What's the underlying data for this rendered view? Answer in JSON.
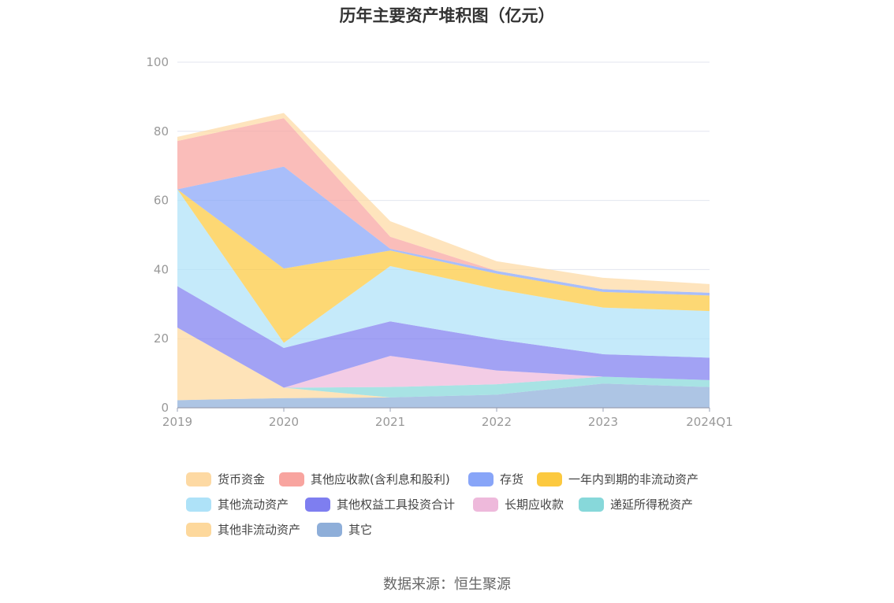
{
  "chart_data": {
    "type": "area",
    "stacked": true,
    "title": "历年主要资产堆积图（亿元）",
    "x": [
      "2019",
      "2020",
      "2021",
      "2022",
      "2023",
      "2024Q1"
    ],
    "ylim": [
      0,
      100
    ],
    "yticks": [
      0,
      20,
      40,
      60,
      80,
      100
    ],
    "grid": true,
    "legend_position": "bottom",
    "series": [
      {
        "name": "其它",
        "color": "#8eaed9",
        "values": [
          2.2,
          2.8,
          3.0,
          3.8,
          7.0,
          6.0
        ]
      },
      {
        "name": "其他非流动资产",
        "color": "#fdd89c",
        "values": [
          21.0,
          3.0,
          0.0,
          0.0,
          0.0,
          0.0
        ]
      },
      {
        "name": "递延所得税资产",
        "color": "#87d8da",
        "values": [
          0.0,
          0.0,
          3.0,
          3.0,
          2.0,
          2.0
        ]
      },
      {
        "name": "长期应收款",
        "color": "#eeb9db",
        "values": [
          0.0,
          0.0,
          9.0,
          4.0,
          0.0,
          0.0
        ]
      },
      {
        "name": "其他权益工具投资合计",
        "color": "#7e7ef0",
        "values": [
          12.0,
          11.5,
          10.0,
          9.0,
          6.5,
          6.5
        ]
      },
      {
        "name": "其他流动资产",
        "color": "#aee2f8",
        "values": [
          28.0,
          1.5,
          16.0,
          14.5,
          13.5,
          13.5
        ]
      },
      {
        "name": "一年内到期的非流动资产",
        "color": "#fcc93f",
        "values": [
          0.0,
          21.5,
          4.5,
          4.5,
          4.5,
          4.5
        ]
      },
      {
        "name": "存货",
        "color": "#88a5f8",
        "values": [
          0.0,
          29.5,
          0.5,
          0.8,
          0.8,
          0.8
        ]
      },
      {
        "name": "其他应收款(含利息和股利)",
        "color": "#f8a49f",
        "values": [
          14.0,
          14.0,
          3.5,
          0.0,
          0.0,
          0.0
        ]
      },
      {
        "name": "货币资金",
        "color": "#fdd9a3",
        "values": [
          1.2,
          1.5,
          4.5,
          2.8,
          3.3,
          2.5
        ]
      }
    ]
  },
  "legend": [
    {
      "label": "货币资金",
      "color": "#fdd9a3"
    },
    {
      "label": "其他应收款(含利息和股利)",
      "color": "#f8a49f"
    },
    {
      "label": "存货",
      "color": "#88a5f8"
    },
    {
      "label": "一年内到期的非流动资产",
      "color": "#fcc93f"
    },
    {
      "label": "其他流动资产",
      "color": "#aee2f8"
    },
    {
      "label": "其他权益工具投资合计",
      "color": "#7e7ef0"
    },
    {
      "label": "长期应收款",
      "color": "#eeb9db"
    },
    {
      "label": "递延所得税资产",
      "color": "#87d8da"
    },
    {
      "label": "其他非流动资产",
      "color": "#fdd89c"
    },
    {
      "label": "其它",
      "color": "#8eaed9"
    }
  ],
  "source": "数据来源：恒生聚源"
}
